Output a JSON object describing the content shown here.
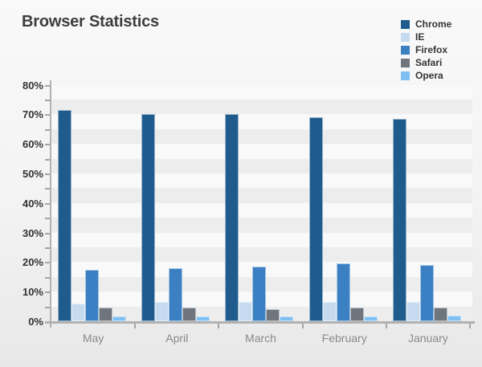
{
  "title": "Browser Statistics",
  "axis": {
    "y_tick_labels": [
      "80%",
      "70%",
      "60%",
      "50%",
      "40%",
      "30%",
      "20%",
      "10%",
      "0%"
    ]
  },
  "chart_data": {
    "type": "bar",
    "title": "Browser Statistics",
    "categories": [
      "May",
      "April",
      "March",
      "February",
      "January"
    ],
    "series": [
      {
        "name": "Chrome",
        "color": "#1F5C8D",
        "values": [
          71.5,
          70.0,
          70.0,
          69.0,
          68.5
        ]
      },
      {
        "name": "IE",
        "color": "#C6DBF0",
        "values": [
          6.0,
          6.5,
          6.5,
          6.5,
          6.5
        ]
      },
      {
        "name": "Firefox",
        "color": "#3A80C2",
        "values": [
          17.5,
          18.0,
          18.5,
          19.5,
          19.0
        ]
      },
      {
        "name": "Safari",
        "color": "#6F757D",
        "values": [
          4.5,
          4.5,
          4.0,
          4.5,
          4.5
        ]
      },
      {
        "name": "Opera",
        "color": "#7FBFF2",
        "values": [
          1.5,
          1.5,
          1.5,
          1.5,
          2.0
        ]
      }
    ],
    "xlabel": "",
    "ylabel": "",
    "ylim": [
      0,
      80
    ],
    "ytick_step": 10,
    "minor_tick_step": 5,
    "ytick_format": "percent",
    "grid": "horizontal-stripes",
    "stripe_colors": {
      "light": "#f9f9f9",
      "dark": "#ededed"
    },
    "legend_position": "top-right",
    "axis_color": "#b2b2b2"
  }
}
